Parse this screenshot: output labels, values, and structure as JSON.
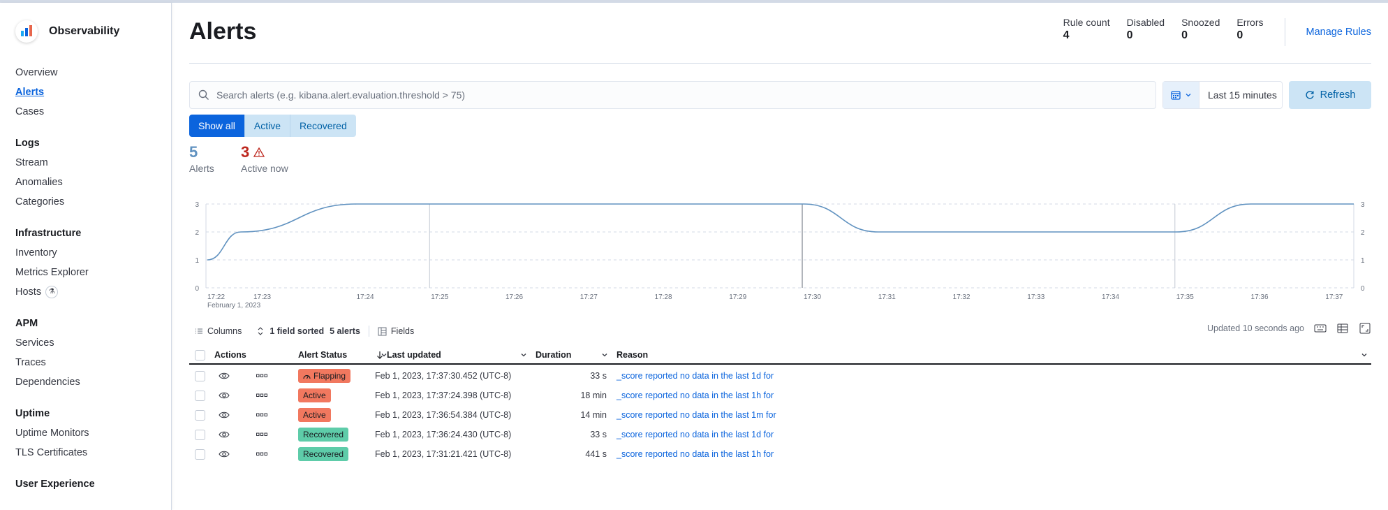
{
  "sidebar": {
    "title": "Observability",
    "items": [
      {
        "label": "Overview"
      },
      {
        "label": "Alerts"
      },
      {
        "label": "Cases"
      }
    ],
    "sections": [
      {
        "title": "Logs",
        "items": [
          "Stream",
          "Anomalies",
          "Categories"
        ]
      },
      {
        "title": "Infrastructure",
        "items": [
          "Inventory",
          "Metrics Explorer",
          "Hosts"
        ]
      },
      {
        "title": "APM",
        "items": [
          "Services",
          "Traces",
          "Dependencies"
        ]
      },
      {
        "title": "Uptime",
        "items": [
          "Uptime Monitors",
          "TLS Certificates"
        ]
      },
      {
        "title": "User Experience",
        "items": []
      }
    ]
  },
  "header": {
    "title": "Alerts",
    "stats": [
      {
        "label": "Rule count",
        "value": "4"
      },
      {
        "label": "Disabled",
        "value": "0"
      },
      {
        "label": "Snoozed",
        "value": "0"
      },
      {
        "label": "Errors",
        "value": "0"
      }
    ],
    "manage_rules": "Manage Rules"
  },
  "search": {
    "placeholder": "Search alerts (e.g. kibana.alert.evaluation.threshold > 75)"
  },
  "datepicker": {
    "label": "Last 15 minutes"
  },
  "refresh_label": "Refresh",
  "filters": [
    "Show all",
    "Active",
    "Recovered"
  ],
  "summary": {
    "alerts_count": "5",
    "alerts_label": "Alerts",
    "active_count": "3",
    "active_label": "Active now"
  },
  "chart_data": {
    "type": "line",
    "x": [
      "17:22",
      "17:23",
      "17:24",
      "17:25",
      "17:26",
      "17:27",
      "17:28",
      "17:29",
      "17:30",
      "17:31",
      "17:32",
      "17:33",
      "17:34",
      "17:35",
      "17:36",
      "17:37"
    ],
    "x_sublabel": "February 1, 2023",
    "series": [
      {
        "values": [
          1,
          2,
          3,
          3,
          3,
          3,
          3,
          3,
          3,
          2,
          2,
          2,
          2,
          2,
          3,
          3
        ]
      }
    ],
    "ylim": [
      0,
      3
    ],
    "yticks": [
      0,
      1,
      2,
      3
    ],
    "grid": true,
    "markers": [
      "17:25",
      "17:30",
      "17:35"
    ],
    "color": "#6092c0"
  },
  "toolbar": {
    "columns": "Columns",
    "sorted": "1 field sorted",
    "alerts": "5 alerts",
    "fields": "Fields",
    "updated": "Updated 10 seconds ago"
  },
  "table": {
    "headers": {
      "actions": "Actions",
      "status": "Alert Status",
      "updated": "Last updated",
      "duration": "Duration",
      "reason": "Reason"
    },
    "rows": [
      {
        "status": "Flapping",
        "updated": "Feb 1, 2023, 17:37:30.452 (UTC-8)",
        "duration": "33 s",
        "reason": "_score reported no data in the last  1d for"
      },
      {
        "status": "Active",
        "updated": "Feb 1, 2023, 17:37:24.398 (UTC-8)",
        "duration": "18 min",
        "reason": "_score reported no data in the last  1h for"
      },
      {
        "status": "Active",
        "updated": "Feb 1, 2023, 17:36:54.384 (UTC-8)",
        "duration": "14 min",
        "reason": "_score reported no data in the last  1m for"
      },
      {
        "status": "Recovered",
        "updated": "Feb 1, 2023, 17:36:24.430 (UTC-8)",
        "duration": "33 s",
        "reason": "_score reported no data in the last  1d for"
      },
      {
        "status": "Recovered",
        "updated": "Feb 1, 2023, 17:31:21.421 (UTC-8)",
        "duration": "441 s",
        "reason": "_score reported no data in the last  1h for"
      }
    ]
  },
  "colors": {
    "accent": "#0b64dd",
    "flapping": "#f1785f",
    "active": "#f1785f",
    "recovered": "#5ecca9",
    "danger": "#bd271e"
  }
}
